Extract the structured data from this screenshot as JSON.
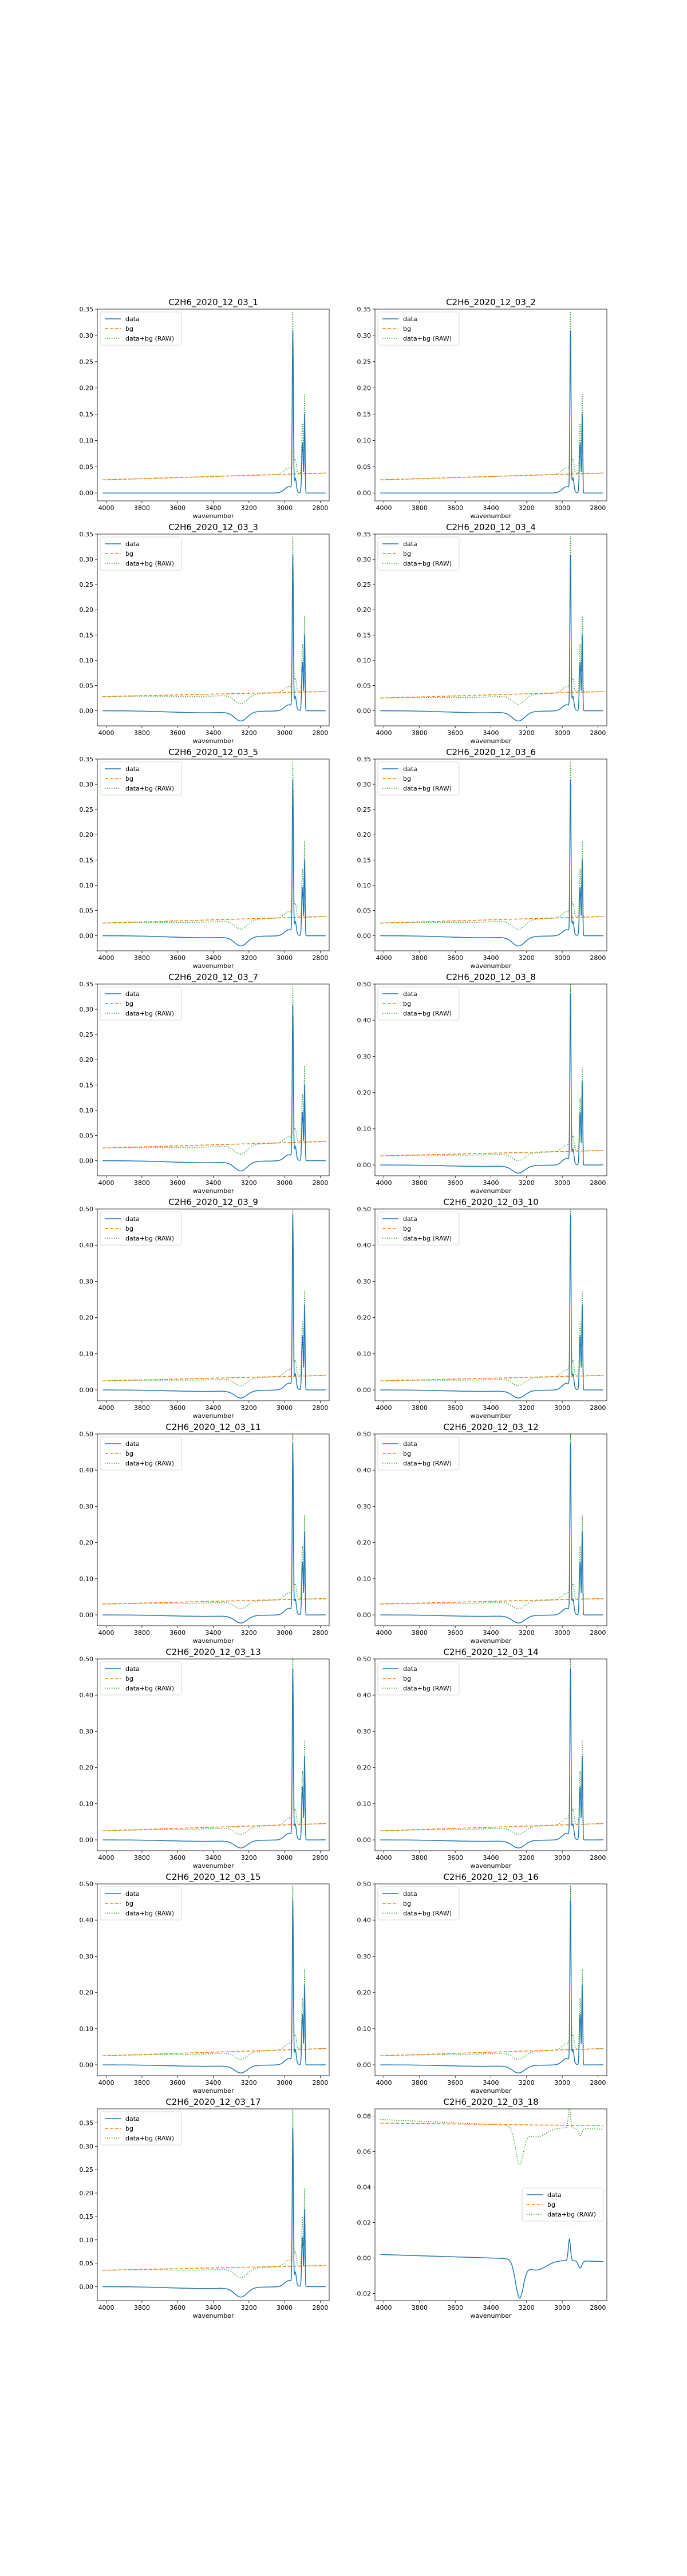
{
  "chart_data": {
    "type": "line",
    "xlabel": "wavenumber",
    "x_reversed": true,
    "xlim": [
      4050,
      2750
    ],
    "xticks": [
      4000,
      3800,
      3600,
      3400,
      3200,
      3000,
      2800
    ],
    "legend_labels": [
      "data",
      "bg",
      "data+bg (RAW)"
    ],
    "series_colors": {
      "data": "#1f77b4",
      "bg": "#ff7f0e",
      "raw": "#2ca02c"
    },
    "spectrum_peaks_cm-1": [
      2954,
      2940,
      2900,
      2888
    ],
    "panels": [
      {
        "title": "C2H6_2020_12_03_1",
        "ylim": [
          -0.015,
          0.35
        ],
        "yticks": [
          0,
          0.05,
          0.1,
          0.15,
          0.2,
          0.25,
          0.3,
          0.35
        ],
        "legend": "upper left",
        "peak_max": 0.3,
        "bg_start": 0.025,
        "bg_end": 0.038,
        "dip_min": 0.0
      },
      {
        "title": "C2H6_2020_12_03_2",
        "ylim": [
          -0.015,
          0.35
        ],
        "yticks": [
          0,
          0.05,
          0.1,
          0.15,
          0.2,
          0.25,
          0.3,
          0.35
        ],
        "legend": "upper left",
        "peak_max": 0.3,
        "bg_start": 0.025,
        "bg_end": 0.038,
        "dip_min": 0.0
      },
      {
        "title": "C2H6_2020_12_03_3",
        "ylim": [
          -0.03,
          0.35
        ],
        "yticks": [
          0,
          0.05,
          0.1,
          0.15,
          0.2,
          0.25,
          0.3,
          0.35
        ],
        "legend": "upper left",
        "peak_max": 0.3,
        "bg_start": 0.028,
        "bg_end": 0.038,
        "dip_min": -0.018
      },
      {
        "title": "C2H6_2020_12_03_4",
        "ylim": [
          -0.03,
          0.35
        ],
        "yticks": [
          0,
          0.05,
          0.1,
          0.15,
          0.2,
          0.25,
          0.3,
          0.35
        ],
        "legend": "upper left",
        "peak_max": 0.3,
        "bg_start": 0.025,
        "bg_end": 0.038,
        "dip_min": -0.018
      },
      {
        "title": "C2H6_2020_12_03_5",
        "ylim": [
          -0.03,
          0.35
        ],
        "yticks": [
          0,
          0.05,
          0.1,
          0.15,
          0.2,
          0.25,
          0.3,
          0.35
        ],
        "legend": "upper left",
        "peak_max": 0.3,
        "bg_start": 0.025,
        "bg_end": 0.038,
        "dip_min": -0.018
      },
      {
        "title": "C2H6_2020_12_03_6",
        "ylim": [
          -0.03,
          0.35
        ],
        "yticks": [
          0,
          0.05,
          0.1,
          0.15,
          0.2,
          0.25,
          0.3,
          0.35
        ],
        "legend": "upper left",
        "peak_max": 0.3,
        "bg_start": 0.025,
        "bg_end": 0.038,
        "dip_min": -0.018
      },
      {
        "title": "C2H6_2020_12_03_7",
        "ylim": [
          -0.03,
          0.35
        ],
        "yticks": [
          0,
          0.05,
          0.1,
          0.15,
          0.2,
          0.25,
          0.3,
          0.35
        ],
        "legend": "upper left",
        "peak_max": 0.3,
        "bg_start": 0.025,
        "bg_end": 0.038,
        "dip_min": -0.018
      },
      {
        "title": "C2H6_2020_12_03_8",
        "ylim": [
          -0.03,
          0.5
        ],
        "yticks": [
          0,
          0.1,
          0.2,
          0.3,
          0.4,
          0.5
        ],
        "legend": "upper left",
        "peak_max": 0.46,
        "bg_start": 0.025,
        "bg_end": 0.04,
        "dip_min": -0.02
      },
      {
        "title": "C2H6_2020_12_03_9",
        "ylim": [
          -0.03,
          0.5
        ],
        "yticks": [
          0,
          0.1,
          0.2,
          0.3,
          0.4,
          0.5
        ],
        "legend": "upper left",
        "peak_max": 0.47,
        "bg_start": 0.025,
        "bg_end": 0.04,
        "dip_min": -0.02
      },
      {
        "title": "C2H6_2020_12_03_10",
        "ylim": [
          -0.03,
          0.5
        ],
        "yticks": [
          0,
          0.1,
          0.2,
          0.3,
          0.4,
          0.5
        ],
        "legend": "upper left",
        "peak_max": 0.47,
        "bg_start": 0.025,
        "bg_end": 0.04,
        "dip_min": -0.02
      },
      {
        "title": "C2H6_2020_12_03_11",
        "ylim": [
          -0.03,
          0.5
        ],
        "yticks": [
          0,
          0.1,
          0.2,
          0.3,
          0.4,
          0.5
        ],
        "legend": "upper left",
        "peak_max": 0.46,
        "bg_start": 0.03,
        "bg_end": 0.045,
        "dip_min": -0.02
      },
      {
        "title": "C2H6_2020_12_03_12",
        "ylim": [
          -0.03,
          0.5
        ],
        "yticks": [
          0,
          0.1,
          0.2,
          0.3,
          0.4,
          0.5
        ],
        "legend": "upper left",
        "peak_max": 0.46,
        "bg_start": 0.03,
        "bg_end": 0.045,
        "dip_min": -0.02
      },
      {
        "title": "C2H6_2020_12_03_13",
        "ylim": [
          -0.03,
          0.5
        ],
        "yticks": [
          0,
          0.1,
          0.2,
          0.3,
          0.4,
          0.5
        ],
        "legend": "upper left",
        "peak_max": 0.46,
        "bg_start": 0.025,
        "bg_end": 0.045,
        "dip_min": -0.02
      },
      {
        "title": "C2H6_2020_12_03_14",
        "ylim": [
          -0.03,
          0.5
        ],
        "yticks": [
          0,
          0.1,
          0.2,
          0.3,
          0.4,
          0.5
        ],
        "legend": "upper left",
        "peak_max": 0.46,
        "bg_start": 0.025,
        "bg_end": 0.045,
        "dip_min": -0.02
      },
      {
        "title": "C2H6_2020_12_03_15",
        "ylim": [
          -0.03,
          0.5
        ],
        "yticks": [
          0,
          0.1,
          0.2,
          0.3,
          0.4,
          0.5
        ],
        "legend": "upper left",
        "peak_max": 0.44,
        "bg_start": 0.025,
        "bg_end": 0.045,
        "dip_min": -0.02
      },
      {
        "title": "C2H6_2020_12_03_16",
        "ylim": [
          -0.03,
          0.5
        ],
        "yticks": [
          0,
          0.1,
          0.2,
          0.3,
          0.4,
          0.5
        ],
        "legend": "upper left",
        "peak_max": 0.44,
        "bg_start": 0.025,
        "bg_end": 0.045,
        "dip_min": -0.02
      },
      {
        "title": "C2H6_2020_12_03_17",
        "ylim": [
          -0.03,
          0.38
        ],
        "yticks": [
          0,
          0.05,
          0.1,
          0.15,
          0.2,
          0.25,
          0.3,
          0.35
        ],
        "legend": "upper left",
        "peak_max": 0.33,
        "bg_start": 0.035,
        "bg_end": 0.045,
        "dip_min": -0.02
      },
      {
        "title": "C2H6_2020_12_03_18",
        "ylim": [
          -0.024,
          0.084
        ],
        "yticks": [
          -0.02,
          0,
          0.02,
          0.04,
          0.06,
          0.08
        ],
        "legend": "center right",
        "special": "negative_dip",
        "bg_level": 0.076,
        "dip_min": -0.02
      }
    ]
  }
}
